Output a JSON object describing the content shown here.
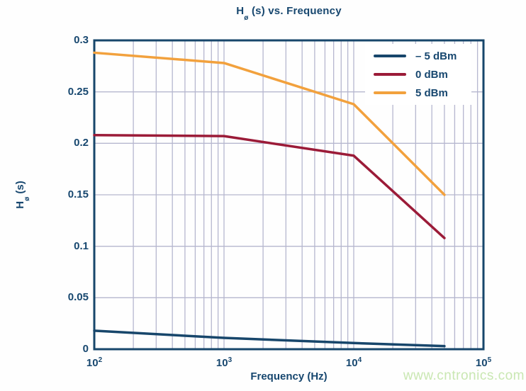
{
  "title": {
    "prefix": "H",
    "subscript": "ø",
    "suffix": " (s) vs. Frequency"
  },
  "axes": {
    "y_label": {
      "prefix": "H",
      "subscript": "ø",
      "suffix": " (s)"
    },
    "x_label": "Frequency (Hz)"
  },
  "watermark": "www.cntronics.com",
  "colors": {
    "navy": "#17476f",
    "maroon": "#9b1b38",
    "orange": "#f2a13d",
    "grid": "#b6b7cf",
    "plot_border": "#17466b",
    "watermark_green": "#c9e7b2",
    "background": "#ffffff"
  },
  "chart_data": {
    "type": "line",
    "title": "Hø (s) vs. Frequency",
    "xlabel": "Frequency (Hz)",
    "ylabel": "Hø (s)",
    "x_scale": "log",
    "xlim": [
      100,
      100000
    ],
    "ylim": [
      0,
      0.3
    ],
    "grid": true,
    "legend_position": "top-right-inside",
    "x": [
      100,
      1000,
      10000,
      50000
    ],
    "series": [
      {
        "name": "– 5 dBm",
        "color": "#17466b",
        "values": [
          0.018,
          0.011,
          0.006,
          0.003
        ]
      },
      {
        "name": "0 dBm",
        "color": "#9b1b38",
        "values": [
          0.208,
          0.207,
          0.188,
          0.108
        ]
      },
      {
        "name": "5 dBm",
        "color": "#f2a13d",
        "values": [
          0.288,
          0.278,
          0.238,
          0.15
        ]
      }
    ],
    "y_ticks": [
      {
        "label": "0",
        "value": 0
      },
      {
        "label": "0.05",
        "value": 0.05
      },
      {
        "label": "0.1",
        "value": 0.1
      },
      {
        "label": "0.15",
        "value": 0.15
      },
      {
        "label": "0.2",
        "value": 0.2
      },
      {
        "label": "0.25",
        "value": 0.25
      },
      {
        "label": "0.3",
        "value": 0.3
      }
    ],
    "x_ticks": [
      {
        "base": "10",
        "exp": "2",
        "value": 100
      },
      {
        "base": "10",
        "exp": "3",
        "value": 1000
      },
      {
        "base": "10",
        "exp": "4",
        "value": 10000
      },
      {
        "base": "10",
        "exp": "5",
        "value": 100000
      }
    ],
    "h_gridline_values": [
      0.05,
      0.1,
      0.15,
      0.2,
      0.25
    ]
  }
}
